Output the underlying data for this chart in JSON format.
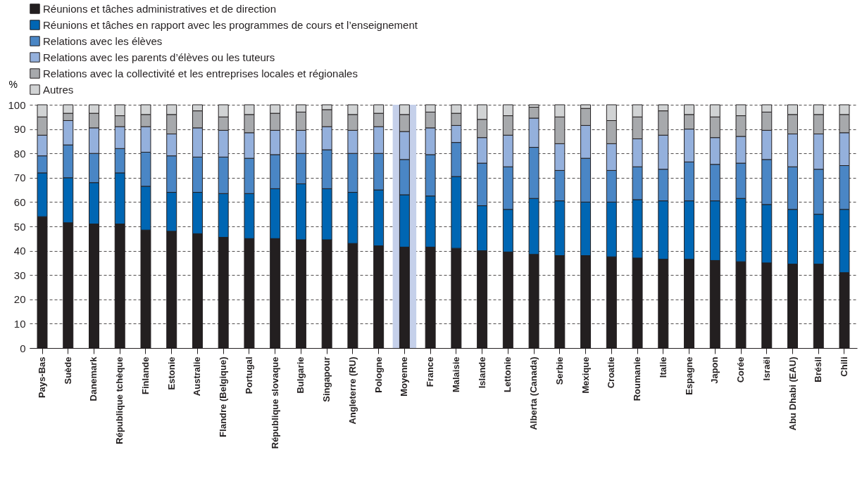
{
  "chart_data": {
    "type": "bar",
    "stacked": true,
    "ylabel": "%",
    "ylim": [
      0,
      100
    ],
    "yticks": [
      0,
      10,
      20,
      30,
      40,
      50,
      60,
      70,
      80,
      90,
      100
    ],
    "grid": "y",
    "legend": "top",
    "categories": [
      "Pays-Bas",
      "Suède",
      "Danemark",
      "République tchèque",
      "Finlande",
      "Estonie",
      "Australie",
      "Flandre (Belgique)",
      "Portugal",
      "République slovaque",
      "Bulgarie",
      "Singapour",
      "Angleterre (RU)",
      "Pologne",
      "Moyenne",
      "France",
      "Malaisie",
      "Islande",
      "Lettonie",
      "Alberta (Canada)",
      "Serbie",
      "Mexique",
      "Croatie",
      "Roumanie",
      "Italie",
      "Espagne",
      "Japon",
      "Corée",
      "Israël",
      "Abu Dhabi (EAU)",
      "Brésil",
      "Chili"
    ],
    "bands": [
      {
        "axis": "x",
        "from": "Moyenne",
        "to": "Moyenne",
        "color": "#c5d0ea"
      }
    ],
    "series": [
      {
        "name": "Réunions et tâches administratives et de direction",
        "color": "#231f20",
        "values": [
          54,
          51.5,
          51,
          51,
          48.5,
          48,
          47,
          45.5,
          45,
          45,
          44.5,
          44.5,
          43,
          42,
          41.5,
          41.5,
          41,
          40,
          39.5,
          38.5,
          38,
          38,
          37.5,
          37,
          36.5,
          36.5,
          36,
          35.5,
          35,
          34.5,
          34.5,
          31
        ]
      },
      {
        "name": "Réunions et tâches en rapport avec les programmes de cours et l’enseignement",
        "color": "#0066b3",
        "values": [
          18,
          18.5,
          17,
          21,
          18,
          16,
          17,
          18,
          18.5,
          20.5,
          23,
          21,
          21,
          23,
          21.5,
          21,
          29.5,
          18.5,
          17.5,
          23,
          22.5,
          22,
          22.5,
          24,
          24,
          24,
          24.5,
          26,
          24,
          22.5,
          20.5,
          26
        ]
      },
      {
        "name": "Relations avec les élèves",
        "color": "#4a86c5",
        "values": [
          7,
          13.5,
          12,
          10,
          14,
          15,
          14.5,
          15,
          14.5,
          14,
          12.5,
          16,
          16,
          15,
          14.5,
          17,
          14,
          17.5,
          17.5,
          21,
          12.5,
          18,
          13,
          13.5,
          13,
          16,
          15,
          14.5,
          18.5,
          17.5,
          18.5,
          18
        ]
      },
      {
        "name": "Relations avec les parents d’élèves ou les tuteurs",
        "color": "#94b0dc",
        "values": [
          8.5,
          10,
          10.5,
          9,
          10.5,
          9,
          12,
          11,
          10.5,
          10,
          9.5,
          9.5,
          9.5,
          11,
          11.5,
          11,
          7,
          10.5,
          13,
          12,
          11,
          13.5,
          11,
          11.5,
          14,
          13.5,
          11,
          11,
          12,
          13.5,
          14.5,
          13.5
        ]
      },
      {
        "name": "Relations avec la collectivité et les entreprises locales et régionales",
        "color": "#a7a9ac",
        "values": [
          7.5,
          3,
          6,
          4.5,
          5,
          8,
          7,
          5.5,
          7.5,
          7,
          7.5,
          7,
          6.5,
          5.5,
          7,
          6.5,
          5,
          7.5,
          8,
          4.5,
          11,
          7,
          9.5,
          9,
          10,
          6,
          8.5,
          8.5,
          7.5,
          8,
          8,
          7.5
        ]
      },
      {
        "name": "Autres",
        "color": "#d1d3d4",
        "values": [
          5,
          3.5,
          3.5,
          4.5,
          4,
          4,
          2.5,
          5,
          4,
          3.5,
          3,
          2,
          4,
          3.5,
          4,
          3,
          3.5,
          6,
          4.5,
          1,
          5,
          1.5,
          6.5,
          5,
          2.5,
          4,
          5,
          4.5,
          3,
          4,
          4,
          4
        ]
      }
    ]
  }
}
